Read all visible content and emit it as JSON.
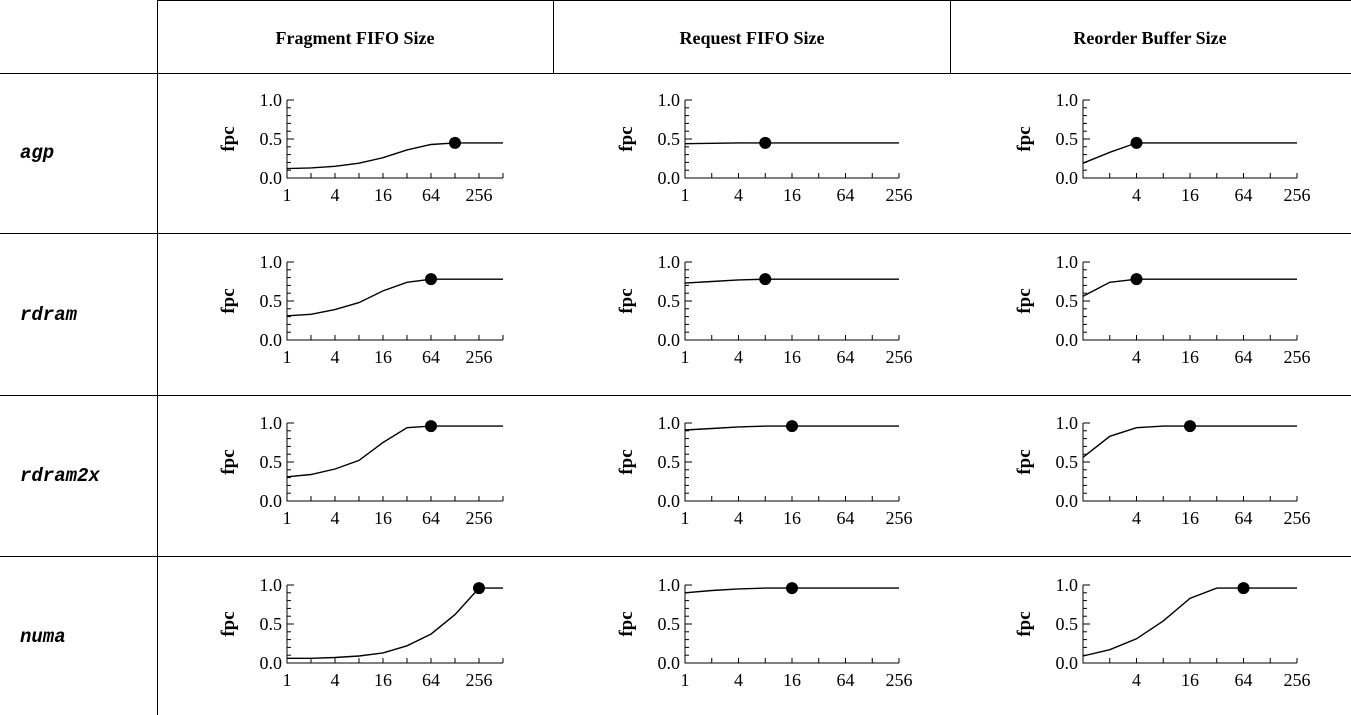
{
  "columns": [
    "Fragment FIFO Size",
    "Request FIFO Size",
    "Reorder Buffer Size"
  ],
  "rows": [
    "agp",
    "rdram",
    "rdram2x",
    "numa"
  ],
  "chart_data": [
    {
      "type": "line",
      "row": "agp",
      "column": "Fragment FIFO Size",
      "ylabel": "fpc",
      "x_scale": "log2",
      "xlim": [
        1,
        512
      ],
      "ylim": [
        0,
        1
      ],
      "x_ticks": [
        "1",
        "4",
        "16",
        "64",
        "256"
      ],
      "y_ticks": [
        "0.0",
        "0.5",
        "1.0"
      ],
      "x": [
        1,
        2,
        4,
        8,
        16,
        32,
        64,
        128,
        256,
        512
      ],
      "y": [
        0.12,
        0.13,
        0.15,
        0.19,
        0.26,
        0.36,
        0.43,
        0.45,
        0.45,
        0.45
      ],
      "marker": {
        "x": 128,
        "y": 0.45
      }
    },
    {
      "type": "line",
      "row": "agp",
      "column": "Request FIFO Size",
      "ylabel": "fpc",
      "x_scale": "log2",
      "xlim": [
        1,
        256
      ],
      "ylim": [
        0,
        1
      ],
      "x_ticks": [
        "1",
        "4",
        "16",
        "64",
        "256"
      ],
      "y_ticks": [
        "0.0",
        "0.5",
        "1.0"
      ],
      "x": [
        1,
        2,
        4,
        8,
        16,
        32,
        64,
        128,
        256
      ],
      "y": [
        0.44,
        0.445,
        0.45,
        0.45,
        0.45,
        0.45,
        0.45,
        0.45,
        0.45
      ],
      "marker": {
        "x": 8,
        "y": 0.45
      }
    },
    {
      "type": "line",
      "row": "agp",
      "column": "Reorder Buffer Size",
      "ylabel": "fpc",
      "x_scale": "log2",
      "xlim": [
        1,
        256
      ],
      "ylim": [
        0,
        1
      ],
      "x_ticks": [
        "4",
        "16",
        "64",
        "256"
      ],
      "y_ticks": [
        "0.0",
        "0.5",
        "1.0"
      ],
      "x": [
        1,
        2,
        4,
        8,
        16,
        32,
        64,
        128,
        256
      ],
      "y": [
        0.19,
        0.33,
        0.45,
        0.45,
        0.45,
        0.45,
        0.45,
        0.45,
        0.45
      ],
      "marker": {
        "x": 4,
        "y": 0.45
      }
    },
    {
      "type": "line",
      "row": "rdram",
      "column": "Fragment FIFO Size",
      "ylabel": "fpc",
      "x_scale": "log2",
      "xlim": [
        1,
        512
      ],
      "ylim": [
        0,
        1
      ],
      "x_ticks": [
        "1",
        "4",
        "16",
        "64",
        "256"
      ],
      "y_ticks": [
        "0.0",
        "0.5",
        "1.0"
      ],
      "x": [
        1,
        2,
        4,
        8,
        16,
        32,
        64,
        128,
        256,
        512
      ],
      "y": [
        0.31,
        0.33,
        0.39,
        0.48,
        0.63,
        0.74,
        0.78,
        0.78,
        0.78,
        0.78
      ],
      "marker": {
        "x": 64,
        "y": 0.78
      }
    },
    {
      "type": "line",
      "row": "rdram",
      "column": "Request FIFO Size",
      "ylabel": "fpc",
      "x_scale": "log2",
      "xlim": [
        1,
        256
      ],
      "ylim": [
        0,
        1
      ],
      "x_ticks": [
        "1",
        "4",
        "16",
        "64",
        "256"
      ],
      "y_ticks": [
        "0.0",
        "0.5",
        "1.0"
      ],
      "x": [
        1,
        2,
        4,
        8,
        16,
        32,
        64,
        128,
        256
      ],
      "y": [
        0.73,
        0.75,
        0.77,
        0.78,
        0.78,
        0.78,
        0.78,
        0.78,
        0.78
      ],
      "marker": {
        "x": 8,
        "y": 0.78
      }
    },
    {
      "type": "line",
      "row": "rdram",
      "column": "Reorder Buffer Size",
      "ylabel": "fpc",
      "x_scale": "log2",
      "xlim": [
        1,
        256
      ],
      "ylim": [
        0,
        1
      ],
      "x_ticks": [
        "4",
        "16",
        "64",
        "256"
      ],
      "y_ticks": [
        "0.0",
        "0.5",
        "1.0"
      ],
      "x": [
        1,
        2,
        4,
        8,
        16,
        32,
        64,
        128,
        256
      ],
      "y": [
        0.56,
        0.74,
        0.78,
        0.78,
        0.78,
        0.78,
        0.78,
        0.78,
        0.78
      ],
      "marker": {
        "x": 4,
        "y": 0.78
      }
    },
    {
      "type": "line",
      "row": "rdram2x",
      "column": "Fragment FIFO Size",
      "ylabel": "fpc",
      "x_scale": "log2",
      "xlim": [
        1,
        512
      ],
      "ylim": [
        0,
        1
      ],
      "x_ticks": [
        "1",
        "4",
        "16",
        "64",
        "256"
      ],
      "y_ticks": [
        "0.0",
        "0.5",
        "1.0"
      ],
      "x": [
        1,
        2,
        4,
        8,
        16,
        32,
        64,
        128,
        256,
        512
      ],
      "y": [
        0.31,
        0.34,
        0.41,
        0.52,
        0.75,
        0.94,
        0.96,
        0.96,
        0.96,
        0.96
      ],
      "marker": {
        "x": 64,
        "y": 0.96
      }
    },
    {
      "type": "line",
      "row": "rdram2x",
      "column": "Request FIFO Size",
      "ylabel": "fpc",
      "x_scale": "log2",
      "xlim": [
        1,
        256
      ],
      "ylim": [
        0,
        1
      ],
      "x_ticks": [
        "1",
        "4",
        "16",
        "64",
        "256"
      ],
      "y_ticks": [
        "0.0",
        "0.5",
        "1.0"
      ],
      "x": [
        1,
        2,
        4,
        8,
        16,
        32,
        64,
        128,
        256
      ],
      "y": [
        0.91,
        0.93,
        0.95,
        0.96,
        0.96,
        0.96,
        0.96,
        0.96,
        0.96
      ],
      "marker": {
        "x": 16,
        "y": 0.96
      }
    },
    {
      "type": "line",
      "row": "rdram2x",
      "column": "Reorder Buffer Size",
      "ylabel": "fpc",
      "x_scale": "log2",
      "xlim": [
        1,
        256
      ],
      "ylim": [
        0,
        1
      ],
      "x_ticks": [
        "4",
        "16",
        "64",
        "256"
      ],
      "y_ticks": [
        "0.0",
        "0.5",
        "1.0"
      ],
      "x": [
        1,
        2,
        4,
        8,
        16,
        32,
        64,
        128,
        256
      ],
      "y": [
        0.56,
        0.83,
        0.94,
        0.96,
        0.96,
        0.96,
        0.96,
        0.96,
        0.96
      ],
      "marker": {
        "x": 16,
        "y": 0.96
      }
    },
    {
      "type": "line",
      "row": "numa",
      "column": "Fragment FIFO Size",
      "ylabel": "fpc",
      "x_scale": "log2",
      "xlim": [
        1,
        512
      ],
      "ylim": [
        0,
        1
      ],
      "x_ticks": [
        "1",
        "4",
        "16",
        "64",
        "256"
      ],
      "y_ticks": [
        "0.0",
        "0.5",
        "1.0"
      ],
      "x": [
        1,
        2,
        4,
        8,
        16,
        32,
        64,
        128,
        256,
        512
      ],
      "y": [
        0.06,
        0.06,
        0.07,
        0.09,
        0.13,
        0.22,
        0.37,
        0.62,
        0.96,
        0.96
      ],
      "marker": {
        "x": 256,
        "y": 0.96
      }
    },
    {
      "type": "line",
      "row": "numa",
      "column": "Request FIFO Size",
      "ylabel": "fpc",
      "x_scale": "log2",
      "xlim": [
        1,
        256
      ],
      "ylim": [
        0,
        1
      ],
      "x_ticks": [
        "1",
        "4",
        "16",
        "64",
        "256"
      ],
      "y_ticks": [
        "0.0",
        "0.5",
        "1.0"
      ],
      "x": [
        1,
        2,
        4,
        8,
        16,
        32,
        64,
        128,
        256
      ],
      "y": [
        0.9,
        0.93,
        0.95,
        0.96,
        0.96,
        0.96,
        0.96,
        0.96,
        0.96
      ],
      "marker": {
        "x": 16,
        "y": 0.96
      }
    },
    {
      "type": "line",
      "row": "numa",
      "column": "Reorder Buffer Size",
      "ylabel": "fpc",
      "x_scale": "log2",
      "xlim": [
        1,
        256
      ],
      "ylim": [
        0,
        1
      ],
      "x_ticks": [
        "4",
        "16",
        "64",
        "256"
      ],
      "y_ticks": [
        "0.0",
        "0.5",
        "1.0"
      ],
      "x": [
        1,
        2,
        4,
        8,
        16,
        32,
        64,
        128,
        256
      ],
      "y": [
        0.09,
        0.17,
        0.31,
        0.54,
        0.83,
        0.96,
        0.96,
        0.96,
        0.96
      ],
      "marker": {
        "x": 64,
        "y": 0.96
      }
    }
  ]
}
